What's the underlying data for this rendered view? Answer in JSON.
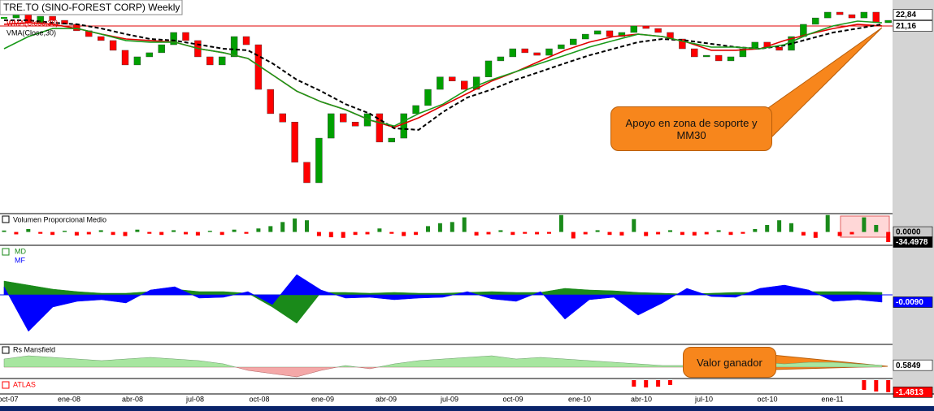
{
  "x_labels": [
    "oct-07",
    "ene-08",
    "abr-08",
    "jul-08",
    "oct-08",
    "ene-09",
    "abr-09",
    "jul-09",
    "oct-09",
    "ene-10",
    "abr-10",
    "jul-10",
    "oct-10",
    "ene-11"
  ],
  "chart_data": [
    {
      "type": "candlestick",
      "title": "TRE.TO (SINO-FOREST CORP) Weekly",
      "log_scale": true,
      "ylim": [
        6.03,
        25.2
      ],
      "yticks": [
        {
          "value": 22.84,
          "label": "22,84"
        },
        {
          "value": 21.16,
          "label": "21,16"
        }
      ],
      "ytick_colors": [
        "#ffffff",
        "#ffffff"
      ],
      "up_color": "#00a000",
      "down_color": "#ff0000",
      "level_color": "#e00000",
      "close": [
        22.34,
        22.84,
        21.63,
        22.59,
        21.98,
        21.4,
        20.49,
        19.71,
        19.19,
        17.97,
        16.29,
        17.2,
        17.68,
        18.66,
        20.26,
        19.19,
        17.2,
        16.29,
        17.2,
        19.71,
        18.66,
        13.82,
        11.74,
        11.1,
        8.47,
        7.38,
        9.96,
        11.74,
        11.1,
        10.8,
        11.74,
        9.7,
        9.96,
        11.74,
        12.4,
        13.82,
        15.03,
        14.62,
        13.82,
        15.03,
        16.74,
        17.2,
        18.16,
        17.68,
        17.38,
        18.16,
        18.66,
        19.39,
        20.03,
        20.49,
        19.71,
        20.26,
        21.17,
        20.81,
        20.26,
        19.39,
        18.16,
        17.2,
        17.38,
        16.74,
        17.2,
        18.16,
        18.98,
        18.36,
        17.97,
        19.71,
        21.4,
        22.34,
        23.22,
        22.84,
        22.34,
        23.22,
        21.63,
        21.98
      ],
      "series": [
        {
          "name": "WMA(Close,30)",
          "color": "#e00000",
          "values": [
            21.4,
            21.63,
            21.4,
            20.81,
            20.03,
            19.39,
            19.19,
            18.98,
            18.16,
            17.68,
            17.01,
            15.25,
            13.66,
            12.72,
            12.06,
            11.24,
            10.71,
            11.42,
            12.4,
            13.45,
            14.62,
            15.58,
            16.74,
            17.97,
            18.98,
            19.71,
            20.03,
            19.71,
            18.98,
            17.97,
            17.97,
            18.16,
            19.19,
            20.03,
            20.81,
            21.4,
            21.17
          ]
        },
        {
          "name": "VMA(Close,30)",
          "color": "#000000",
          "dashed": true,
          "values": [
            21.98,
            21.98,
            21.63,
            21.4,
            20.81,
            20.03,
            19.39,
            19.19,
            18.66,
            18.16,
            17.97,
            16.47,
            14.75,
            13.66,
            12.52,
            11.74,
            10.64,
            10.53,
            11.88,
            13.09,
            13.82,
            14.75,
            15.58,
            16.47,
            17.38,
            18.16,
            18.98,
            19.39,
            19.19,
            18.77,
            18.36,
            18.16,
            18.56,
            19.39,
            20.26,
            20.81,
            21.4
          ]
        },
        {
          "color": "#1a9a1a",
          "values": [
            18.16,
            19.71,
            20.81,
            20.81,
            20.03,
            19.19,
            18.98,
            18.98,
            18.16,
            17.68,
            17.01,
            15.25,
            13.66,
            12.72,
            12.06,
            11.24,
            10.8,
            11.74,
            12.52,
            13.82,
            14.75,
            15.58,
            16.47,
            17.38,
            18.36,
            19.19,
            20.03,
            19.71,
            18.98,
            18.36,
            18.36,
            18.16,
            18.66,
            20.03,
            21.17,
            21.86,
            21.63
          ]
        }
      ],
      "annotation": "Apoyo en zona de soporte y MM30"
    },
    {
      "type": "bar",
      "title": "Volumen Proporcional Medio",
      "ylim": [
        -40,
        60
      ],
      "yticks": [
        {
          "value": 0,
          "label": "0.0000"
        },
        -34.4978
      ],
      "ytick_colors": [
        "#c8c8c8",
        "#000000"
      ],
      "up_color": "#1a8a1a",
      "down_color": "#ff0000",
      "values": [
        5,
        -8,
        10,
        -6,
        -10,
        4,
        -12,
        -8,
        6,
        -10,
        -14,
        8,
        -6,
        -10,
        6,
        -8,
        -12,
        4,
        -10,
        8,
        -6,
        12,
        20,
        34,
        46,
        40,
        -14,
        -18,
        -20,
        -10,
        -8,
        12,
        -6,
        -14,
        -10,
        20,
        30,
        34,
        50,
        -12,
        -8,
        6,
        -10,
        -6,
        -8,
        -6,
        58,
        -22,
        -8,
        6,
        -10,
        -12,
        44,
        -14,
        -8,
        6,
        -10,
        -12,
        -8,
        6,
        -10,
        -6,
        10,
        24,
        40,
        30,
        -12,
        -20,
        58,
        -14,
        -8,
        50,
        24,
        -34.4978
      ]
    },
    {
      "type": "area",
      "ylim": [
        -0.06,
        0.06
      ],
      "yticks": [
        {
          "value": -0.009,
          "label": "-0.0090"
        }
      ],
      "ytick_colors": [
        "#0000ff"
      ],
      "series": [
        {
          "name": "MD",
          "color": "#1a8a1a",
          "values": [
            0.017,
            0.012,
            0.007,
            0.004,
            0.002,
            0.002,
            0.004,
            0.007,
            0.004,
            0.004,
            0.002,
            -0.015,
            -0.035,
            0.003,
            0.003,
            0.002,
            0.003,
            0.002,
            0.002,
            0.003,
            0.004,
            0.003,
            0.003,
            0.008,
            0.006,
            0.005,
            0.003,
            0.002,
            0.001,
            0.002,
            0.003,
            0.003,
            0.004,
            0.004,
            0.004,
            0.004,
            0.003
          ]
        },
        {
          "name": "MF",
          "color": "#0000ff",
          "values": [
            0.01,
            -0.045,
            -0.015,
            -0.008,
            -0.006,
            -0.01,
            0.006,
            0.01,
            -0.004,
            -0.003,
            0.004,
            -0.012,
            0.025,
            0.006,
            -0.004,
            -0.003,
            -0.006,
            -0.004,
            -0.003,
            0.004,
            -0.005,
            -0.008,
            0.004,
            -0.03,
            -0.006,
            -0.003,
            -0.025,
            -0.01,
            0.008,
            -0.002,
            -0.003,
            0.008,
            0.012,
            0.006,
            -0.008,
            -0.006,
            -0.009
          ]
        }
      ]
    },
    {
      "type": "signed_area",
      "title": "Rs Mansfield",
      "ylim": [
        -3.5,
        6.75
      ],
      "yticks": [
        0.5849
      ],
      "ytick_colors": [
        "#ffffff"
      ],
      "color": "#a8e6a0",
      "negative_color": "#f4a8a8",
      "values": [
        2.5,
        3.5,
        3.0,
        2.5,
        2.0,
        2.5,
        3.0,
        2.5,
        2.0,
        1.0,
        -1.0,
        -2.0,
        -3.0,
        -1.0,
        0.5,
        -0.5,
        1.0,
        2.0,
        2.5,
        3.0,
        3.5,
        2.5,
        3.0,
        2.5,
        2.0,
        1.5,
        1.0,
        0.5,
        0.5,
        1.0,
        1.5,
        1.5,
        1.0,
        1.5,
        1.5,
        1.0,
        0.5849
      ],
      "annotation": "Valor ganador"
    },
    {
      "type": "bar",
      "title": "ATLAS",
      "ylim": [
        -1.7,
        0.1
      ],
      "yticks": [
        -1.4813
      ],
      "ytick_colors": [
        "#ff0000"
      ],
      "up_color": "#ff0000",
      "down_color": "#ff0000",
      "values": [
        0,
        0,
        0,
        0,
        0,
        0,
        0,
        0,
        0,
        0,
        0,
        0,
        0,
        0,
        0,
        0,
        0,
        0,
        0,
        0,
        0,
        0,
        0,
        0,
        0,
        0,
        0,
        0,
        0,
        0,
        0,
        0,
        0,
        0,
        0,
        0,
        0,
        0,
        0,
        0,
        0,
        0,
        0,
        0,
        0,
        0,
        0,
        0,
        0,
        0,
        0,
        0,
        -0.8,
        -0.9,
        -0.8,
        -0.6,
        0,
        0,
        0,
        0,
        0,
        0,
        0,
        0,
        0,
        0,
        0,
        0,
        0,
        0,
        0,
        -1.2,
        -1.4,
        -1.4813
      ]
    }
  ]
}
